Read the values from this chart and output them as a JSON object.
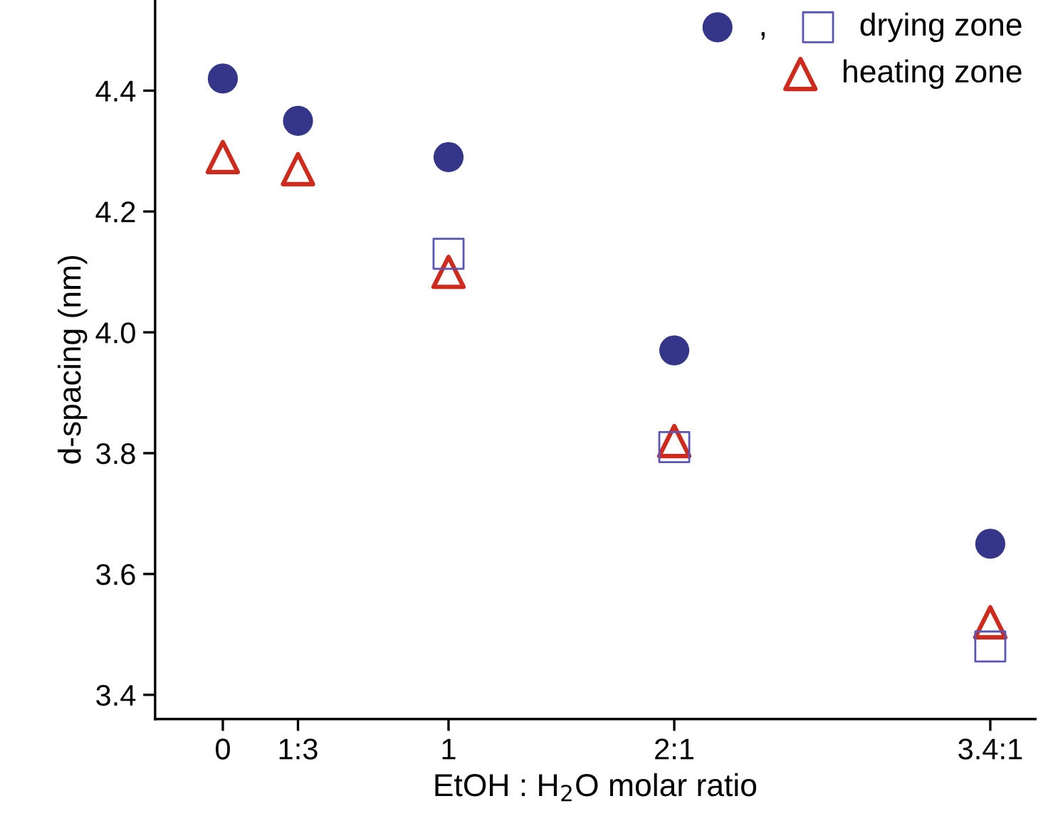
{
  "chart_data": {
    "type": "scatter",
    "xlabel": "EtOH : H$_{2}$O molar ratio",
    "ylabel": "d-spacing (nm)",
    "x": [
      0,
      0.333,
      1,
      2,
      3.4
    ],
    "series": [
      {
        "name": ",",
        "color": "#35358a",
        "marker": "circle",
        "values": [
          4.42,
          4.35,
          4.29,
          3.97,
          3.65
        ]
      },
      {
        "name": "drying zone",
        "color": "#5b55b5",
        "marker": "square",
        "x": [
          1,
          2,
          3.4
        ],
        "values": [
          4.13,
          3.81,
          3.48
        ]
      },
      {
        "name": "heating zone",
        "color": "#cc2b1d",
        "marker": "triangle",
        "values": [
          4.29,
          4.27,
          4.1,
          3.82,
          3.52
        ]
      }
    ],
    "xlim": [
      -0.3,
      3.6
    ],
    "xticks": [
      0,
      {
        "value": 0.333,
        "label": "1:3"
      },
      1,
      {
        "value": 2,
        "label": "2:1"
      },
      {
        "value": 3.4,
        "label": "3.4:1"
      }
    ],
    "ylim": [
      3.36,
      4.55
    ],
    "yticks": [
      3.4,
      3.6,
      3.8,
      {
        "value": 4,
        "label": "4.0"
      },
      4.2,
      4.4
    ],
    "grid": false,
    "legend": "top right"
  }
}
